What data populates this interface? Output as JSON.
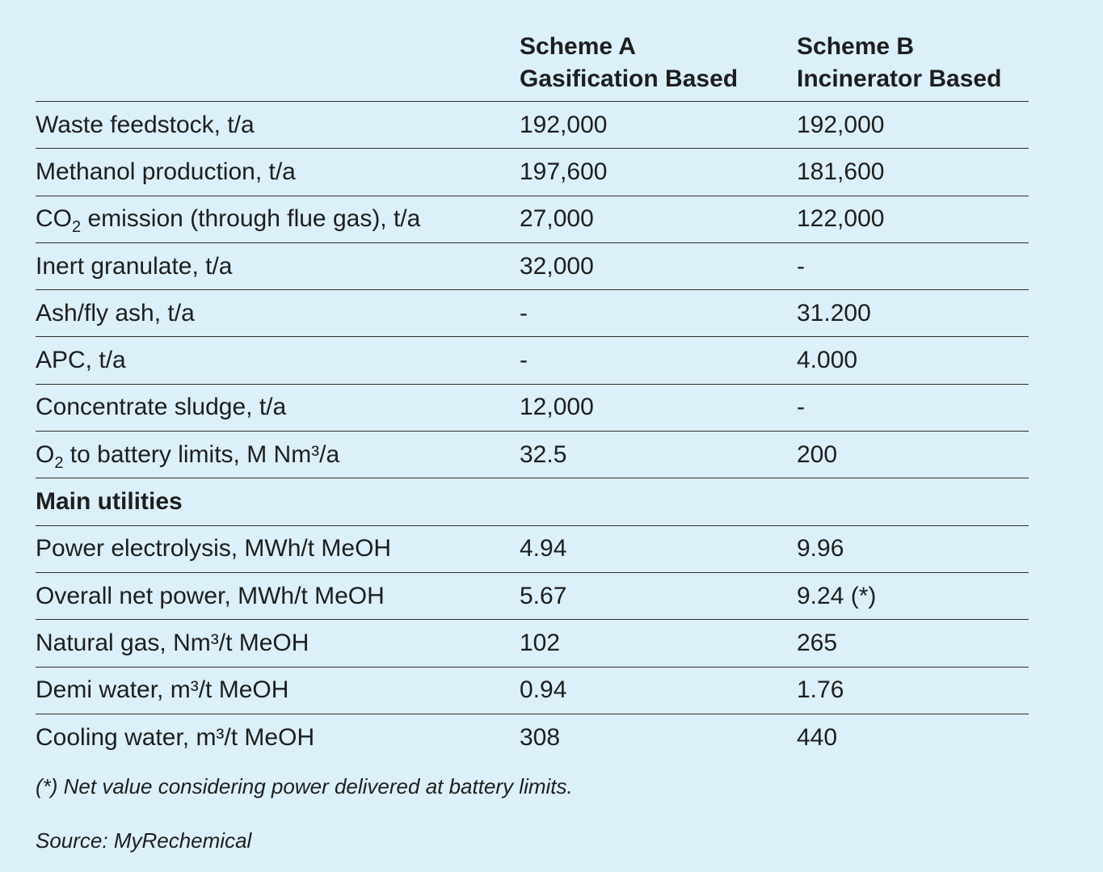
{
  "header": {
    "scheme_a_title": "Scheme A",
    "scheme_a_subtitle": "Gasification Based",
    "scheme_b_title": "Scheme B",
    "scheme_b_subtitle": "Incinerator Based"
  },
  "rows": [
    {
      "label": "Waste feedstock, t/a",
      "a": "192,000",
      "b": "192,000"
    },
    {
      "label": "Methanol production, t/a",
      "a": "197,600",
      "b": "181,600"
    },
    {
      "label_pre": "CO",
      "label_sub": "2",
      "label_post": " emission (through flue gas), t/a",
      "a": "27,000",
      "b": "122,000"
    },
    {
      "label": "Inert granulate, t/a",
      "a": "32,000",
      "b": "-"
    },
    {
      "label": "Ash/fly ash, t/a",
      "a": "-",
      "b": "31.200"
    },
    {
      "label": "APC, t/a",
      "a": "-",
      "b": "4.000"
    },
    {
      "label": "Concentrate sludge, t/a",
      "a": "12,000",
      "b": "-"
    },
    {
      "label_pre": "O",
      "label_sub": "2",
      "label_post": " to battery limits, M Nm³/a",
      "a": "32.5",
      "b": "200"
    }
  ],
  "section_title": "Main utilities",
  "utilities": [
    {
      "label": "Power electrolysis, MWh/t MeOH",
      "a": "4.94",
      "b": "9.96"
    },
    {
      "label": "Overall net power, MWh/t MeOH",
      "a": "5.67",
      "b": "9.24 (*)"
    },
    {
      "label": "Natural gas, Nm³/t MeOH",
      "a": "102",
      "b": "265"
    },
    {
      "label": "Demi water, m³/t MeOH",
      "a": "0.94",
      "b": "1.76"
    },
    {
      "label": "Cooling water, m³/t MeOH",
      "a": "308",
      "b": "440"
    }
  ],
  "footnote": "(*) Net value considering power delivered at battery limits.",
  "source": "Source: MyRechemical"
}
